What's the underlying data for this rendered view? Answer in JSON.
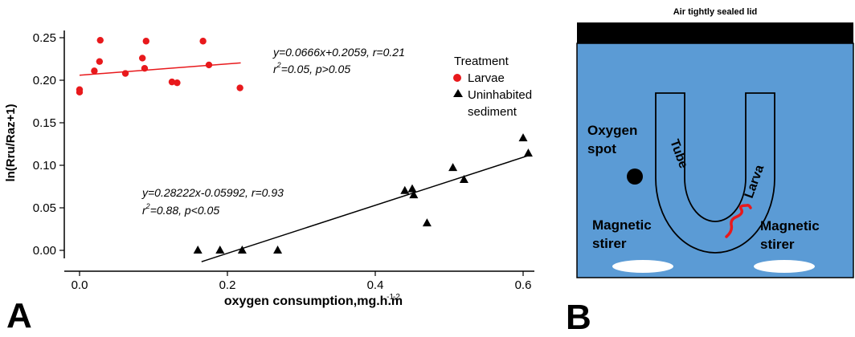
{
  "panels": {
    "a": "A",
    "b": "B"
  },
  "chart_data": {
    "type": "scatter",
    "xlabel": "oxygen consumption,mg.h.m",
    "xlabel_exp1": "-1",
    "xlabel_exp2": "-2",
    "ylabel": "ln(Rru/Raz+1)",
    "xlim": [
      0.0,
      0.62
    ],
    "ylim": [
      -0.01,
      0.255
    ],
    "xticks": [
      0.0,
      0.2,
      0.4,
      0.6
    ],
    "xtick_labels": [
      "0.0",
      "0.2",
      "0.4",
      "0.6"
    ],
    "yticks": [
      0.0,
      0.05,
      0.1,
      0.15,
      0.2,
      0.25
    ],
    "ytick_labels": [
      "0.00",
      "0.05",
      "0.10",
      "0.15",
      "0.20",
      "0.25"
    ],
    "legend_title": "Treatment",
    "legend_position": "right",
    "series": [
      {
        "name": "Larvae",
        "marker": "circle",
        "color": "#e8191c",
        "points": [
          [
            0.0,
            0.189
          ],
          [
            0.0,
            0.186
          ],
          [
            0.02,
            0.211
          ],
          [
            0.027,
            0.222
          ],
          [
            0.028,
            0.247
          ],
          [
            0.062,
            0.208
          ],
          [
            0.085,
            0.226
          ],
          [
            0.088,
            0.214
          ],
          [
            0.09,
            0.246
          ],
          [
            0.125,
            0.198
          ],
          [
            0.132,
            0.197
          ],
          [
            0.167,
            0.246
          ],
          [
            0.175,
            0.218
          ],
          [
            0.217,
            0.191
          ]
        ],
        "fit": {
          "slope": 0.0666,
          "intercept": 0.2059,
          "x_range": [
            0.0,
            0.218
          ]
        },
        "equation": "y=0.0666x+0.2059, r=0.21",
        "stats": {
          "r2_prefix": "r",
          "r2_exp": "2",
          "r2_rest": "=0.05, p>0.05"
        }
      },
      {
        "name": "Uninhabited sediment",
        "name_lines": [
          "Uninhabited",
          "sediment"
        ],
        "marker": "triangle",
        "color": "#000000",
        "points": [
          [
            0.16,
            0.0
          ],
          [
            0.19,
            0.0
          ],
          [
            0.22,
            0.0
          ],
          [
            0.268,
            0.0
          ],
          [
            0.44,
            0.07
          ],
          [
            0.45,
            0.072
          ],
          [
            0.452,
            0.065
          ],
          [
            0.47,
            0.032
          ],
          [
            0.505,
            0.097
          ],
          [
            0.52,
            0.083
          ],
          [
            0.6,
            0.132
          ],
          [
            0.607,
            0.114
          ]
        ],
        "fit": {
          "slope": 0.28222,
          "intercept": -0.05992,
          "x_range": [
            0.165,
            0.607
          ]
        },
        "equation": "y=0.28222x-0.05992, r=0.93",
        "stats": {
          "r2_prefix": "r",
          "r2_exp": "2",
          "r2_rest": "=0.88, p<0.05"
        }
      }
    ]
  },
  "diagram": {
    "lid_label": "Air tightly sealed lid",
    "oxygen_spot": [
      "Oxygen",
      "spot"
    ],
    "tube_label": "Tube",
    "larva_label": "Larva",
    "stirer_left": [
      "Magnetic",
      "stirer"
    ],
    "stirer_right": [
      "Magnetic",
      "stirer"
    ],
    "colors": {
      "water": "#5b9bd5",
      "lid": "#000000",
      "larva": "#e8191c",
      "stirrer": "#ffffff"
    }
  }
}
